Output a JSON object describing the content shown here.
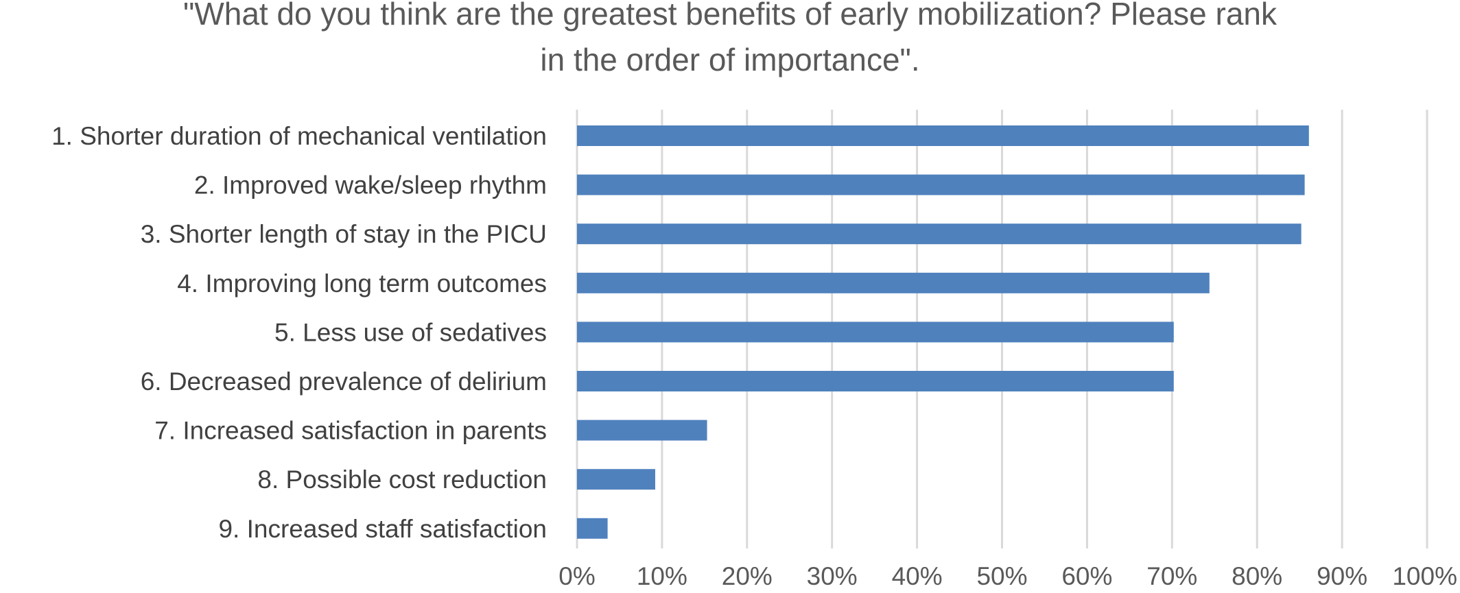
{
  "chart_data": {
    "type": "bar",
    "orientation": "horizontal",
    "title_lines": [
      "\"What do you think are the greatest benefits of early mobilization? Please rank",
      "in the order of importance\"."
    ],
    "categories": [
      "1. Shorter duration of mechanical ventilation",
      "2. Improved wake/sleep rhythm",
      "3. Shorter length of stay in the PICU",
      "4. Improving long term outcomes",
      "5. Less use of sedatives",
      "6. Decreased prevalence of delirium",
      "7. Increased satisfaction in parents",
      "8. Possible cost reduction",
      "9. Increased staff satisfaction"
    ],
    "values": [
      86.1,
      85.6,
      85.2,
      74.4,
      70.2,
      70.2,
      15.3,
      9.2,
      3.6
    ],
    "unit": "%",
    "xlim": [
      0,
      100
    ],
    "x_ticks": [
      "0%",
      "10%",
      "20%",
      "30%",
      "40%",
      "50%",
      "60%",
      "70%",
      "80%",
      "90%",
      "100%"
    ],
    "grid": true,
    "legend": "none",
    "bar_color": "#4f81bd"
  }
}
